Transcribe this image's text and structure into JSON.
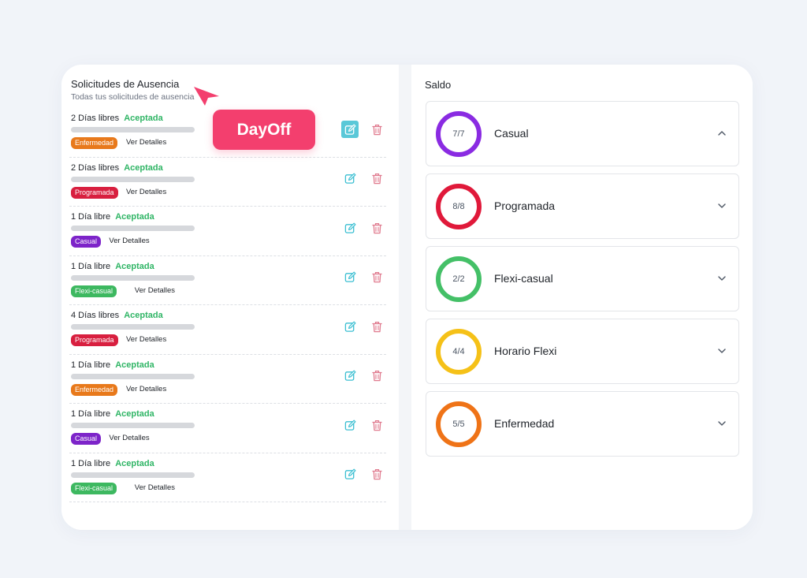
{
  "left": {
    "title": "Solicitudes de Ausencia",
    "subtitle": "Todas tus solicitudes de ausencia"
  },
  "tooltip": {
    "label": "DayOff"
  },
  "requests": [
    {
      "days": "2 Días libres",
      "status": "Aceptada",
      "tag": "Enfermedad",
      "tag_color": "#e8791b",
      "link": "Ver Detalles"
    },
    {
      "days": "2 Días libres",
      "status": "Aceptada",
      "tag": "Programada",
      "tag_color": "#d81f3f",
      "link": "Ver Detalles"
    },
    {
      "days": "1 Día libre",
      "status": "Aceptada",
      "tag": "Casual",
      "tag_color": "#7d24c9",
      "link": "Ver Detalles"
    },
    {
      "days": "1 Día libre",
      "status": "Aceptada",
      "tag": "Flexi-casual",
      "tag_color": "#3db860",
      "link": "Ver Detalles"
    },
    {
      "days": "4 Días libres",
      "status": "Aceptada",
      "tag": "Programada",
      "tag_color": "#d81f3f",
      "link": "Ver Detalles"
    },
    {
      "days": "1 Día libre",
      "status": "Aceptada",
      "tag": "Enfermedad",
      "tag_color": "#e8791b",
      "link": "Ver Detalles"
    },
    {
      "days": "1 Día libre",
      "status": "Aceptada",
      "tag": "Casual",
      "tag_color": "#7d24c9",
      "link": "Ver Detalles"
    },
    {
      "days": "1 Día libre",
      "status": "Aceptada",
      "tag": "Flexi-casual",
      "tag_color": "#3db860",
      "link": "Ver Detalles"
    }
  ],
  "saldo": {
    "title": "Saldo",
    "items": [
      {
        "label": "Casual",
        "count": "7/7",
        "color": "#8a2be2",
        "expanded": true
      },
      {
        "label": "Programada",
        "count": "8/8",
        "color": "#e0193a",
        "expanded": false
      },
      {
        "label": "Flexi-casual",
        "count": "2/2",
        "color": "#44c067",
        "expanded": false
      },
      {
        "label": "Horario Flexi",
        "count": "4/4",
        "color": "#f5c118",
        "expanded": false
      },
      {
        "label": "Enfermedad",
        "count": "5/5",
        "color": "#ef7317",
        "expanded": false
      }
    ]
  },
  "colors": {
    "accent": "#5ac8d8",
    "edit_icon": "#3bbfd2",
    "delete_icon": "#e07a8e",
    "status": "#2fb565",
    "tooltip": "#f33f6e"
  },
  "icons": {
    "edit": "edit-icon",
    "delete": "trash-icon",
    "chevron": "chevron-icon",
    "cursor": "cursor-icon"
  }
}
